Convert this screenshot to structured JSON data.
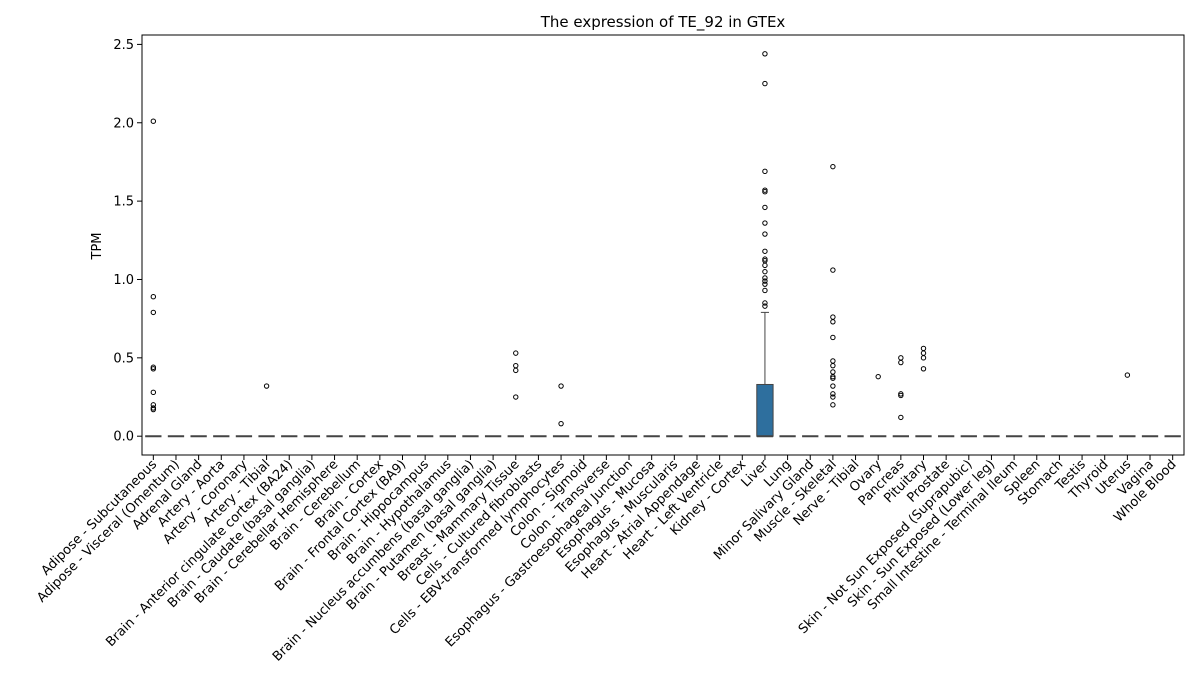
{
  "chart_data": {
    "type": "box",
    "title": "The expression of TE_92 in GTEx",
    "xlabel": "",
    "ylabel": "TPM",
    "ylim": [
      -0.12,
      2.56
    ],
    "yticks": [
      "0.0",
      "0.5",
      "1.0",
      "1.5",
      "2.0",
      "2.5"
    ],
    "grid": false,
    "legend": "none",
    "box_color": "#2e6f9e",
    "zero_line_color": "#444444",
    "categories": [
      "Adipose - Subcutaneous",
      "Adipose - Visceral (Omentum)",
      "Adrenal Gland",
      "Artery - Aorta",
      "Artery - Coronary",
      "Artery - Tibial",
      "Brain - Anterior cingulate cortex (BA24)",
      "Brain - Caudate (basal ganglia)",
      "Brain - Cerebellar Hemisphere",
      "Brain - Cerebellum",
      "Brain - Cortex",
      "Brain - Frontal Cortex (BA9)",
      "Brain - Hippocampus",
      "Brain - Hypothalamus",
      "Brain - Nucleus accumbens (basal ganglia)",
      "Brain - Putamen (basal ganglia)",
      "Breast - Mammary Tissue",
      "Cells - Cultured fibroblasts",
      "Cells - EBV-transformed lymphocytes",
      "Colon - Sigmoid",
      "Colon - Transverse",
      "Esophagus - Gastroesophageal Junction",
      "Esophagus - Mucosa",
      "Esophagus - Muscularis",
      "Heart - Atrial Appendage",
      "Heart - Left Ventricle",
      "Kidney - Cortex",
      "Liver",
      "Lung",
      "Minor Salivary Gland",
      "Muscle - Skeletal",
      "Nerve - Tibial",
      "Ovary",
      "Pancreas",
      "Pituitary",
      "Prostate",
      "Skin - Not Sun Exposed (Suprapubic)",
      "Skin - Sun Exposed (Lower leg)",
      "Small Intestine - Terminal Ileum",
      "Spleen",
      "Stomach",
      "Testis",
      "Thyroid",
      "Uterus",
      "Vagina",
      "Whole Blood"
    ],
    "boxes": [
      {
        "q1": 0,
        "median": 0,
        "q3": 0,
        "whisker_low": 0,
        "whisker_high": 0,
        "outliers": [
          2.01,
          0.89,
          0.79,
          0.44,
          0.43,
          0.28,
          0.2,
          0.18,
          0.17
        ]
      },
      {
        "q1": 0,
        "median": 0,
        "q3": 0,
        "whisker_low": 0,
        "whisker_high": 0,
        "outliers": []
      },
      {
        "q1": 0,
        "median": 0,
        "q3": 0,
        "whisker_low": 0,
        "whisker_high": 0,
        "outliers": []
      },
      {
        "q1": 0,
        "median": 0,
        "q3": 0,
        "whisker_low": 0,
        "whisker_high": 0,
        "outliers": []
      },
      {
        "q1": 0,
        "median": 0,
        "q3": 0,
        "whisker_low": 0,
        "whisker_high": 0,
        "outliers": []
      },
      {
        "q1": 0,
        "median": 0,
        "q3": 0,
        "whisker_low": 0,
        "whisker_high": 0,
        "outliers": [
          0.32
        ]
      },
      {
        "q1": 0,
        "median": 0,
        "q3": 0,
        "whisker_low": 0,
        "whisker_high": 0,
        "outliers": []
      },
      {
        "q1": 0,
        "median": 0,
        "q3": 0,
        "whisker_low": 0,
        "whisker_high": 0,
        "outliers": []
      },
      {
        "q1": 0,
        "median": 0,
        "q3": 0,
        "whisker_low": 0,
        "whisker_high": 0,
        "outliers": []
      },
      {
        "q1": 0,
        "median": 0,
        "q3": 0,
        "whisker_low": 0,
        "whisker_high": 0,
        "outliers": []
      },
      {
        "q1": 0,
        "median": 0,
        "q3": 0,
        "whisker_low": 0,
        "whisker_high": 0,
        "outliers": []
      },
      {
        "q1": 0,
        "median": 0,
        "q3": 0,
        "whisker_low": 0,
        "whisker_high": 0,
        "outliers": []
      },
      {
        "q1": 0,
        "median": 0,
        "q3": 0,
        "whisker_low": 0,
        "whisker_high": 0,
        "outliers": []
      },
      {
        "q1": 0,
        "median": 0,
        "q3": 0,
        "whisker_low": 0,
        "whisker_high": 0,
        "outliers": []
      },
      {
        "q1": 0,
        "median": 0,
        "q3": 0,
        "whisker_low": 0,
        "whisker_high": 0,
        "outliers": []
      },
      {
        "q1": 0,
        "median": 0,
        "q3": 0,
        "whisker_low": 0,
        "whisker_high": 0,
        "outliers": []
      },
      {
        "q1": 0,
        "median": 0,
        "q3": 0,
        "whisker_low": 0,
        "whisker_high": 0,
        "outliers": [
          0.53,
          0.45,
          0.42,
          0.25
        ]
      },
      {
        "q1": 0,
        "median": 0,
        "q3": 0,
        "whisker_low": 0,
        "whisker_high": 0,
        "outliers": []
      },
      {
        "q1": 0,
        "median": 0,
        "q3": 0,
        "whisker_low": 0,
        "whisker_high": 0,
        "outliers": [
          0.32,
          0.08
        ]
      },
      {
        "q1": 0,
        "median": 0,
        "q3": 0,
        "whisker_low": 0,
        "whisker_high": 0,
        "outliers": []
      },
      {
        "q1": 0,
        "median": 0,
        "q3": 0,
        "whisker_low": 0,
        "whisker_high": 0,
        "outliers": []
      },
      {
        "q1": 0,
        "median": 0,
        "q3": 0,
        "whisker_low": 0,
        "whisker_high": 0,
        "outliers": []
      },
      {
        "q1": 0,
        "median": 0,
        "q3": 0,
        "whisker_low": 0,
        "whisker_high": 0,
        "outliers": []
      },
      {
        "q1": 0,
        "median": 0,
        "q3": 0,
        "whisker_low": 0,
        "whisker_high": 0,
        "outliers": []
      },
      {
        "q1": 0,
        "median": 0,
        "q3": 0,
        "whisker_low": 0,
        "whisker_high": 0,
        "outliers": []
      },
      {
        "q1": 0,
        "median": 0,
        "q3": 0,
        "whisker_low": 0,
        "whisker_high": 0,
        "outliers": []
      },
      {
        "q1": 0,
        "median": 0,
        "q3": 0,
        "whisker_low": 0,
        "whisker_high": 0,
        "outliers": []
      },
      {
        "q1": 0,
        "median": 0,
        "q3": 0.33,
        "whisker_low": 0,
        "whisker_high": 0.79,
        "outliers": [
          2.44,
          2.25,
          1.69,
          1.57,
          1.56,
          1.46,
          1.36,
          1.29,
          1.18,
          1.13,
          1.12,
          1.09,
          1.05,
          1.01,
          0.99,
          0.97,
          0.93,
          0.85,
          0.83
        ]
      },
      {
        "q1": 0,
        "median": 0,
        "q3": 0,
        "whisker_low": 0,
        "whisker_high": 0,
        "outliers": []
      },
      {
        "q1": 0,
        "median": 0,
        "q3": 0,
        "whisker_low": 0,
        "whisker_high": 0,
        "outliers": []
      },
      {
        "q1": 0,
        "median": 0,
        "q3": 0,
        "whisker_low": 0,
        "whisker_high": 0,
        "outliers": [
          1.72,
          1.06,
          0.76,
          0.73,
          0.63,
          0.48,
          0.45,
          0.41,
          0.38,
          0.37,
          0.32,
          0.27,
          0.25,
          0.2
        ]
      },
      {
        "q1": 0,
        "median": 0,
        "q3": 0,
        "whisker_low": 0,
        "whisker_high": 0,
        "outliers": []
      },
      {
        "q1": 0,
        "median": 0,
        "q3": 0,
        "whisker_low": 0,
        "whisker_high": 0,
        "outliers": [
          0.38
        ]
      },
      {
        "q1": 0,
        "median": 0,
        "q3": 0,
        "whisker_low": 0,
        "whisker_high": 0,
        "outliers": [
          0.5,
          0.47,
          0.27,
          0.26,
          0.12
        ]
      },
      {
        "q1": 0,
        "median": 0,
        "q3": 0,
        "whisker_low": 0,
        "whisker_high": 0,
        "outliers": [
          0.56,
          0.53,
          0.5,
          0.43
        ]
      },
      {
        "q1": 0,
        "median": 0,
        "q3": 0,
        "whisker_low": 0,
        "whisker_high": 0,
        "outliers": []
      },
      {
        "q1": 0,
        "median": 0,
        "q3": 0,
        "whisker_low": 0,
        "whisker_high": 0,
        "outliers": []
      },
      {
        "q1": 0,
        "median": 0,
        "q3": 0,
        "whisker_low": 0,
        "whisker_high": 0,
        "outliers": []
      },
      {
        "q1": 0,
        "median": 0,
        "q3": 0,
        "whisker_low": 0,
        "whisker_high": 0,
        "outliers": []
      },
      {
        "q1": 0,
        "median": 0,
        "q3": 0,
        "whisker_low": 0,
        "whisker_high": 0,
        "outliers": []
      },
      {
        "q1": 0,
        "median": 0,
        "q3": 0,
        "whisker_low": 0,
        "whisker_high": 0,
        "outliers": []
      },
      {
        "q1": 0,
        "median": 0,
        "q3": 0,
        "whisker_low": 0,
        "whisker_high": 0,
        "outliers": []
      },
      {
        "q1": 0,
        "median": 0,
        "q3": 0,
        "whisker_low": 0,
        "whisker_high": 0,
        "outliers": []
      },
      {
        "q1": 0,
        "median": 0,
        "q3": 0,
        "whisker_low": 0,
        "whisker_high": 0,
        "outliers": [
          0.39
        ]
      },
      {
        "q1": 0,
        "median": 0,
        "q3": 0,
        "whisker_low": 0,
        "whisker_high": 0,
        "outliers": []
      },
      {
        "q1": 0,
        "median": 0,
        "q3": 0,
        "whisker_low": 0,
        "whisker_high": 0,
        "outliers": []
      }
    ]
  }
}
